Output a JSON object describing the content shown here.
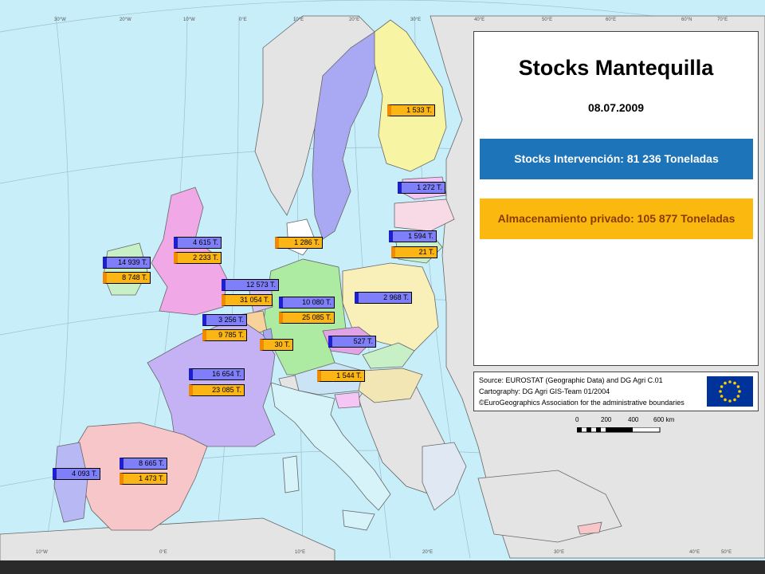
{
  "panel": {
    "title": "Stocks Mantequilla",
    "date": "08.07.2009",
    "intervention": "Stocks Intervención: 81 236 Toneladas",
    "private": "Almacenamiento privado: 105 877 Toneladas"
  },
  "source": {
    "line1": "Source: EUROSTAT (Geographic Data) and DG Agri C.01",
    "line2": "Cartography: DG Agri GIS-Team 01/2004",
    "line3": "©EuroGeographics Association for the administrative boundaries"
  },
  "scale": {
    "labels": [
      "0",
      "200",
      "400",
      "600 km"
    ]
  },
  "colors": {
    "sea": "#c8eefa",
    "land_other": "#e4e4e4",
    "tag_blue": "#7f7ffa",
    "tag_orange": "#fbb515",
    "intervention_bg": "#1e74b8",
    "private_bg": "#fbb80f"
  },
  "grid": {
    "top": [
      "30°W",
      "20°W",
      "10°W",
      "0°E",
      "10°E",
      "20°E",
      "30°E",
      "40°E",
      "50°E",
      "60°E",
      "60°N",
      "70°E"
    ],
    "bottom": [
      "10°W",
      "0°E",
      "10°E",
      "20°E",
      "30°E",
      "40°E",
      "50°E"
    ]
  },
  "labels": {
    "finland_o": "1 533 T.",
    "estonia_b": "1 272 T.",
    "latvia_b": "1 594 T.",
    "latvia_o": "21 T.",
    "denmark_o": "1 286 T.",
    "uk_b": "4 615 T.",
    "uk_o": "2 233 T.",
    "ireland_b": "14 939 T.",
    "ireland_o": "8 748 T.",
    "nl_b": "12 573 T.",
    "nl_o": "31 054 T.",
    "de_b": "10 080 T.",
    "de_o": "25 085 T.",
    "pl_b": "2 968 T.",
    "be_b": "3 256 T.",
    "be_o": "9 785 T.",
    "lu_o": "30 T.",
    "cz_b": "527 T.",
    "at_o": "1 544 T.",
    "fr_b": "16 654 T.",
    "fr_o": "23 085 T.",
    "es_b": "8 665 T.",
    "es_o": "1 473 T.",
    "pt_b": "4 093 T."
  }
}
